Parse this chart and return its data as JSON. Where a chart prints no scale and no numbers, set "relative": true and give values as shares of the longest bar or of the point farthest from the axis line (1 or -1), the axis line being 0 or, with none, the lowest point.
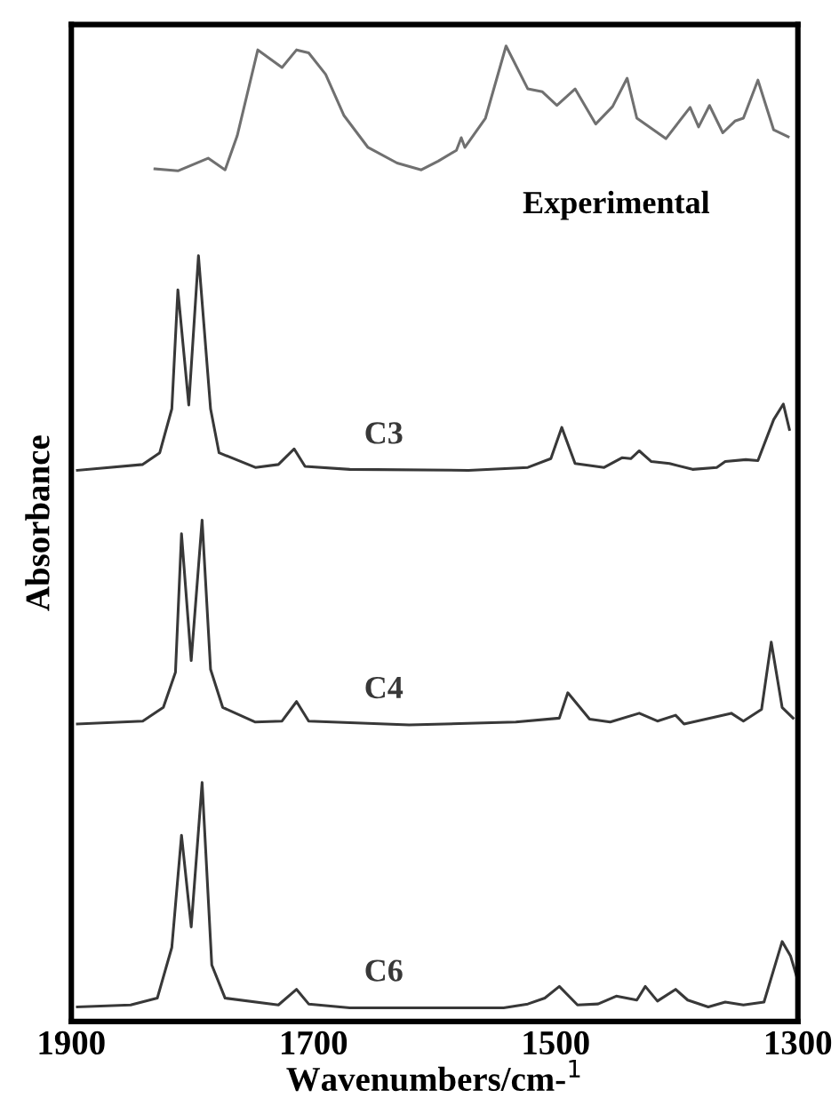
{
  "chart_data": {
    "type": "line",
    "relative": true,
    "xlabel": "Wavenumbers/cm-$^{1}$",
    "ylabel": "Absorbance",
    "xlim": [
      1900,
      1300
    ],
    "xticks": [
      1900,
      1700,
      1500,
      1300
    ],
    "tick_labels": "x",
    "series": [
      {
        "name": "Experimental",
        "color": "#707070",
        "x": [
          1831,
          1812,
          1787,
          1773,
          1763,
          1746,
          1726,
          1714,
          1704,
          1690,
          1675,
          1655,
          1631,
          1611,
          1597,
          1582,
          1578,
          1575,
          1558,
          1541,
          1523,
          1511,
          1499,
          1484,
          1467,
          1453,
          1441,
          1433,
          1409,
          1389,
          1382,
          1373,
          1362,
          1352,
          1345,
          1333,
          1320,
          1308
        ],
        "values": [
          0.874,
          0.872,
          0.885,
          0.873,
          0.908,
          0.996,
          0.978,
          0.996,
          0.993,
          0.971,
          0.929,
          0.896,
          0.88,
          0.873,
          0.882,
          0.893,
          0.906,
          0.896,
          0.926,
          1.0,
          0.956,
          0.953,
          0.939,
          0.956,
          0.92,
          0.938,
          0.967,
          0.926,
          0.905,
          0.937,
          0.917,
          0.939,
          0.911,
          0.923,
          0.926,
          0.965,
          0.914,
          0.907
        ]
      },
      {
        "name": "C3",
        "color": "#383838",
        "x": [
          1895,
          1841,
          1827,
          1817,
          1812,
          1803,
          1795,
          1785,
          1778,
          1748,
          1729,
          1716,
          1707,
          1670,
          1572,
          1523,
          1504,
          1495,
          1484,
          1460,
          1445,
          1438,
          1431,
          1421,
          1406,
          1387,
          1367,
          1360,
          1343,
          1333,
          1320,
          1312,
          1307
        ],
        "values": [
          0.565,
          0.571,
          0.583,
          0.628,
          0.75,
          0.632,
          0.785,
          0.628,
          0.583,
          0.568,
          0.571,
          0.587,
          0.569,
          0.566,
          0.565,
          0.568,
          0.577,
          0.609,
          0.572,
          0.568,
          0.578,
          0.577,
          0.585,
          0.574,
          0.572,
          0.566,
          0.568,
          0.574,
          0.576,
          0.575,
          0.617,
          0.633,
          0.607
        ]
      },
      {
        "name": "C4",
        "color": "#383838",
        "x": [
          1895,
          1841,
          1824,
          1814,
          1809,
          1801,
          1792,
          1785,
          1775,
          1748,
          1726,
          1714,
          1704,
          1621,
          1533,
          1497,
          1490,
          1472,
          1455,
          1431,
          1416,
          1401,
          1394,
          1355,
          1345,
          1330,
          1322,
          1313,
          1304
        ],
        "values": [
          0.305,
          0.308,
          0.322,
          0.358,
          0.5,
          0.37,
          0.514,
          0.361,
          0.322,
          0.307,
          0.308,
          0.328,
          0.308,
          0.304,
          0.307,
          0.311,
          0.337,
          0.31,
          0.307,
          0.316,
          0.308,
          0.314,
          0.305,
          0.316,
          0.308,
          0.32,
          0.389,
          0.322,
          0.311
        ]
      },
      {
        "name": "C6",
        "color": "#383838",
        "x": [
          1895,
          1851,
          1829,
          1817,
          1809,
          1801,
          1792,
          1784,
          1773,
          1729,
          1714,
          1704,
          1670,
          1543,
          1523,
          1509,
          1497,
          1482,
          1465,
          1450,
          1433,
          1426,
          1416,
          1401,
          1391,
          1374,
          1360,
          1345,
          1328,
          1313,
          1306,
          1301
        ],
        "values": [
          0.015,
          0.017,
          0.024,
          0.076,
          0.191,
          0.097,
          0.245,
          0.058,
          0.024,
          0.017,
          0.033,
          0.018,
          0.014,
          0.014,
          0.018,
          0.024,
          0.036,
          0.017,
          0.018,
          0.026,
          0.022,
          0.036,
          0.021,
          0.033,
          0.022,
          0.015,
          0.02,
          0.017,
          0.02,
          0.082,
          0.067,
          0.046
        ]
      }
    ]
  }
}
